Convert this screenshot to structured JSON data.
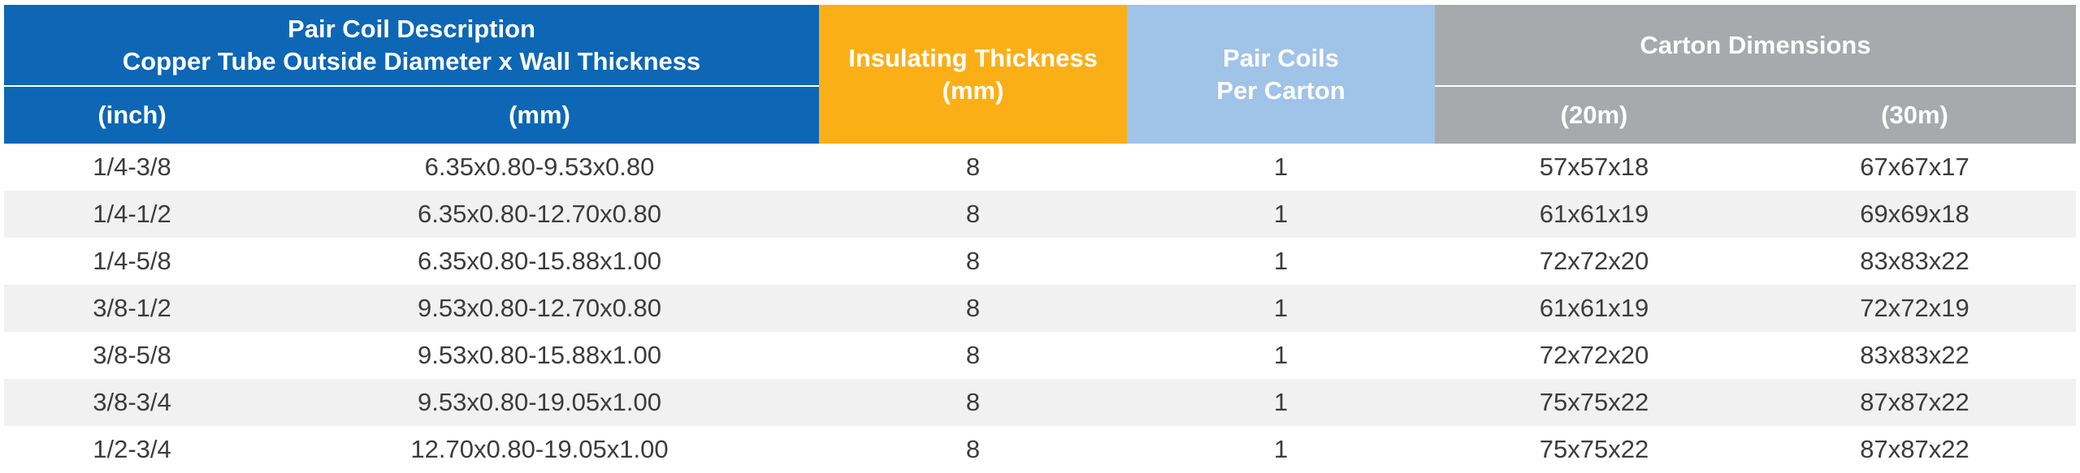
{
  "header": {
    "pair_coil": {
      "title": "Pair Coil Description",
      "subtitle": "Copper Tube Outside Diameter x Wall Thickness",
      "inch": "(inch)",
      "mm": "(mm)"
    },
    "insulating": {
      "line1": "Insulating Thickness",
      "line2": "(mm)"
    },
    "pair_coils": {
      "line1": "Pair Coils",
      "line2": "Per Carton"
    },
    "carton": {
      "title": "Carton Dimensions",
      "m20": "(20m)",
      "m30": "(30m)"
    }
  },
  "rows": [
    {
      "inch": "1/4-3/8",
      "mm": "6.35x0.80-9.53x0.80",
      "insulating": "8",
      "pair": "1",
      "m20": "57x57x18",
      "m30": "67x67x17"
    },
    {
      "inch": "1/4-1/2",
      "mm": "6.35x0.80-12.70x0.80",
      "insulating": "8",
      "pair": "1",
      "m20": "61x61x19",
      "m30": "69x69x18"
    },
    {
      "inch": "1/4-5/8",
      "mm": "6.35x0.80-15.88x1.00",
      "insulating": "8",
      "pair": "1",
      "m20": "72x72x20",
      "m30": "83x83x22"
    },
    {
      "inch": "3/8-1/2",
      "mm": "9.53x0.80-12.70x0.80",
      "insulating": "8",
      "pair": "1",
      "m20": "61x61x19",
      "m30": "72x72x19"
    },
    {
      "inch": "3/8-5/8",
      "mm": "9.53x0.80-15.88x1.00",
      "insulating": "8",
      "pair": "1",
      "m20": "72x72x20",
      "m30": "83x83x22"
    },
    {
      "inch": "3/8-3/4",
      "mm": "9.53x0.80-19.05x1.00",
      "insulating": "8",
      "pair": "1",
      "m20": "75x75x22",
      "m30": "87x87x22"
    },
    {
      "inch": "1/2-3/4",
      "mm": "12.70x0.80-19.05x1.00",
      "insulating": "8",
      "pair": "1",
      "m20": "75x75x22",
      "m30": "87x87x22"
    }
  ],
  "colors": {
    "blue": "#0d67b5",
    "orange": "#fbaf17",
    "light_blue": "#a0c3e8",
    "gray": "#a7a9ac",
    "stripe": "#f1f1f2",
    "text": "#3c3c3c"
  }
}
